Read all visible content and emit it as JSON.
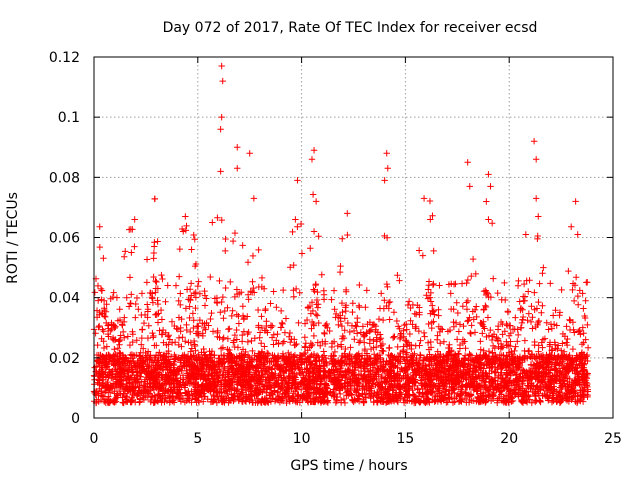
{
  "chart_data": {
    "type": "scatter",
    "title": "Day 072 of 2017, Rate Of TEC Index for receiver ecsd",
    "xlabel": "GPS time / hours",
    "ylabel": "ROTI / TECUs",
    "xlim": [
      0,
      25
    ],
    "ylim": [
      0,
      0.12
    ],
    "xticks": [
      0,
      5,
      10,
      15,
      20,
      25
    ],
    "yticks": [
      0,
      0.02,
      0.04,
      0.06,
      0.08,
      0.1,
      0.12
    ],
    "xtick_labels": [
      "0",
      "5",
      "10",
      "15",
      "20",
      "25"
    ],
    "ytick_labels": [
      "0",
      "0.02",
      "0.04",
      "0.06",
      "0.08",
      "0.1",
      "0.12"
    ],
    "grid": true,
    "marker": "+",
    "color": "#ff0000",
    "notable_points": [
      {
        "x": 6.15,
        "y": 0.117
      },
      {
        "x": 6.2,
        "y": 0.112
      },
      {
        "x": 6.15,
        "y": 0.1
      },
      {
        "x": 6.1,
        "y": 0.096
      },
      {
        "x": 6.1,
        "y": 0.082
      },
      {
        "x": 6.9,
        "y": 0.09
      },
      {
        "x": 6.9,
        "y": 0.083
      },
      {
        "x": 7.5,
        "y": 0.088
      },
      {
        "x": 7.7,
        "y": 0.073
      },
      {
        "x": 9.8,
        "y": 0.079
      },
      {
        "x": 9.7,
        "y": 0.066
      },
      {
        "x": 10.6,
        "y": 0.089
      },
      {
        "x": 10.5,
        "y": 0.086
      },
      {
        "x": 10.7,
        "y": 0.072
      },
      {
        "x": 10.6,
        "y": 0.062
      },
      {
        "x": 12.2,
        "y": 0.068
      },
      {
        "x": 14.1,
        "y": 0.088
      },
      {
        "x": 14.15,
        "y": 0.083
      },
      {
        "x": 14.0,
        "y": 0.079
      },
      {
        "x": 15.9,
        "y": 0.073
      },
      {
        "x": 16.2,
        "y": 0.066
      },
      {
        "x": 18.0,
        "y": 0.085
      },
      {
        "x": 18.1,
        "y": 0.077
      },
      {
        "x": 19.0,
        "y": 0.081
      },
      {
        "x": 19.1,
        "y": 0.077
      },
      {
        "x": 19.0,
        "y": 0.066
      },
      {
        "x": 21.2,
        "y": 0.092
      },
      {
        "x": 21.3,
        "y": 0.086
      },
      {
        "x": 21.3,
        "y": 0.073
      },
      {
        "x": 21.4,
        "y": 0.067
      },
      {
        "x": 23.2,
        "y": 0.072
      },
      {
        "x": 23.3,
        "y": 0.061
      },
      {
        "x": 4.4,
        "y": 0.067
      },
      {
        "x": 4.3,
        "y": 0.062
      },
      {
        "x": 5.7,
        "y": 0.065
      },
      {
        "x": 4.7,
        "y": 0.056
      },
      {
        "x": 2.9,
        "y": 0.057
      },
      {
        "x": 1.8,
        "y": 0.055
      },
      {
        "x": 0.2,
        "y": 0.039
      },
      {
        "x": 20.8,
        "y": 0.061
      }
    ]
  }
}
